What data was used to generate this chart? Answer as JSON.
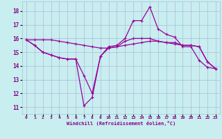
{
  "xlabel": "Windchill (Refroidissement éolien,°C)",
  "background_color": "#c8eef0",
  "grid_color": "#b0b8d8",
  "line_color": "#990099",
  "x_ticks": [
    0,
    1,
    2,
    3,
    4,
    5,
    6,
    7,
    8,
    9,
    10,
    11,
    12,
    13,
    14,
    15,
    16,
    17,
    18,
    19,
    20,
    21,
    22,
    23
  ],
  "y_ticks": [
    11,
    12,
    13,
    14,
    15,
    16,
    17,
    18
  ],
  "ylim": [
    10.5,
    18.7
  ],
  "xlim": [
    -0.5,
    23.5
  ],
  "series": [
    {
      "x": [
        0,
        1,
        2,
        3,
        4,
        5,
        6,
        7,
        8,
        9,
        10,
        11,
        12,
        13,
        14,
        15,
        16,
        17,
        18,
        19,
        20,
        21,
        22,
        23
      ],
      "y": [
        15.9,
        15.5,
        15.0,
        14.8,
        14.6,
        14.5,
        14.5,
        11.1,
        11.7,
        14.7,
        15.4,
        15.5,
        16.0,
        17.3,
        17.3,
        18.3,
        16.7,
        16.3,
        16.1,
        15.4,
        15.4,
        14.4,
        13.9,
        13.8
      ]
    },
    {
      "x": [
        0,
        1,
        2,
        3,
        4,
        5,
        6,
        7,
        8,
        9,
        10,
        11,
        12,
        13,
        14,
        15,
        16,
        17,
        18,
        19,
        20,
        21,
        22,
        23
      ],
      "y": [
        15.9,
        15.5,
        15.0,
        14.8,
        14.6,
        14.5,
        14.5,
        13.3,
        12.0,
        14.7,
        15.3,
        15.4,
        15.8,
        16.0,
        16.0,
        16.0,
        15.8,
        15.7,
        15.7,
        15.5,
        15.5,
        15.4,
        14.3,
        13.8
      ]
    },
    {
      "x": [
        0,
        1,
        2,
        3,
        4,
        5,
        6,
        7,
        8,
        9,
        10,
        11,
        12,
        13,
        14,
        15,
        16,
        17,
        18,
        19,
        20,
        21,
        22,
        23
      ],
      "y": [
        15.9,
        15.9,
        15.9,
        15.9,
        15.8,
        15.7,
        15.6,
        15.5,
        15.4,
        15.3,
        15.3,
        15.4,
        15.5,
        15.6,
        15.7,
        15.8,
        15.8,
        15.7,
        15.6,
        15.5,
        15.5,
        15.4,
        14.3,
        13.8
      ]
    }
  ]
}
